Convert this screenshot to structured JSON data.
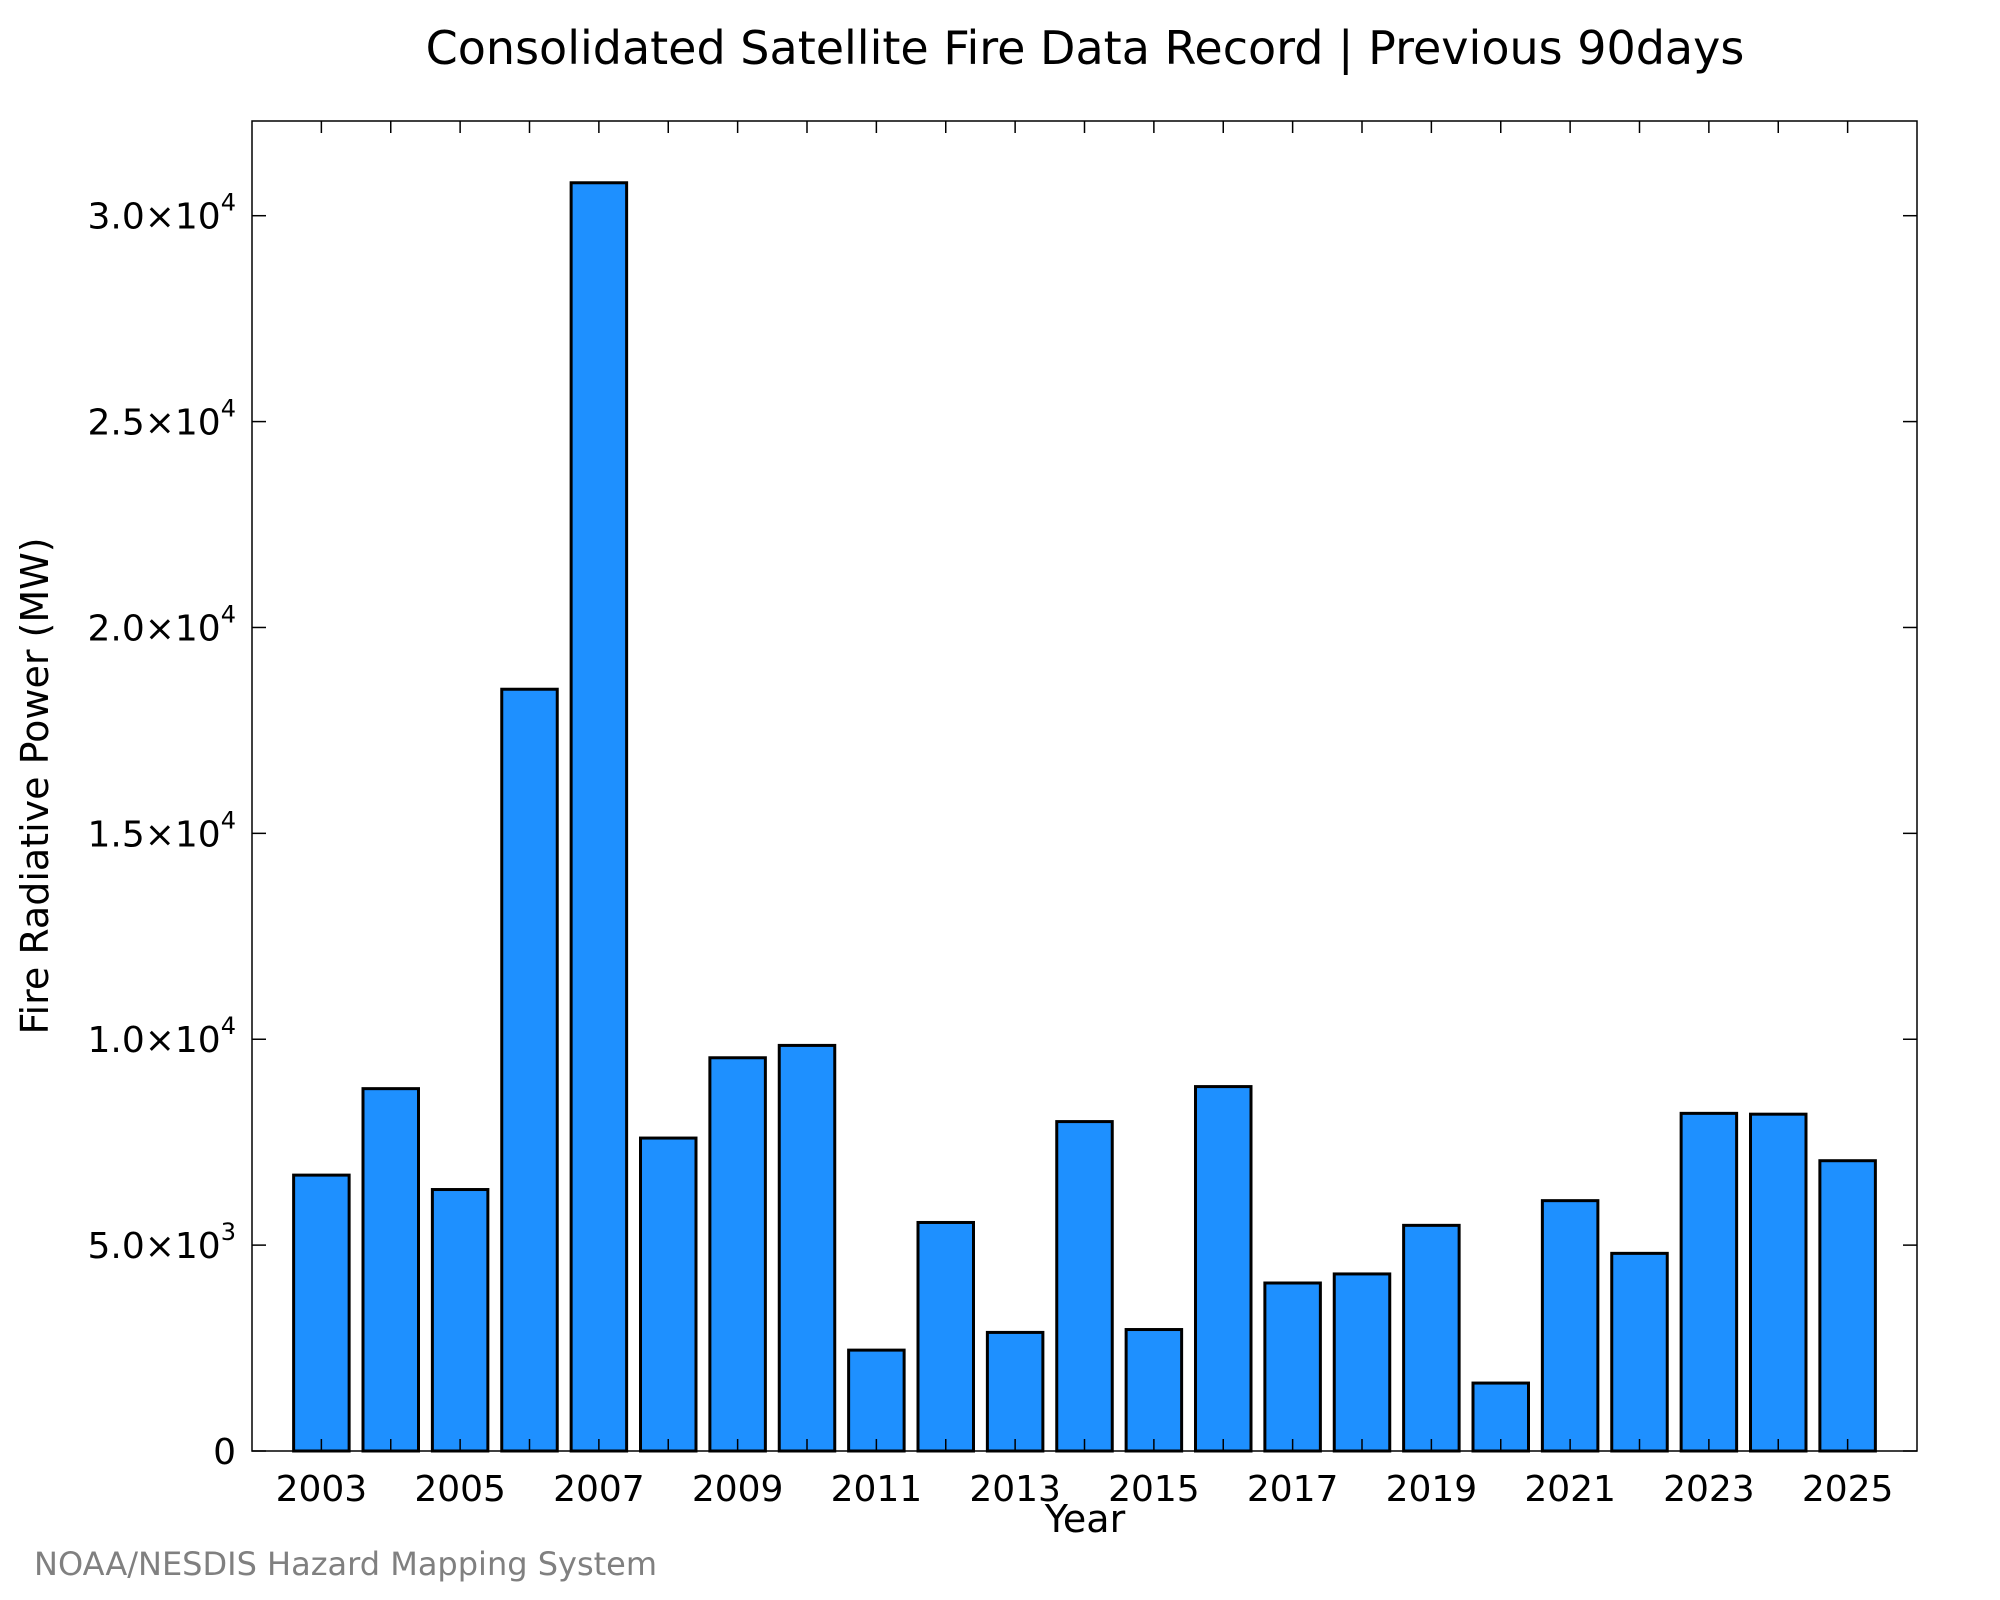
{
  "chart_data": {
    "type": "bar",
    "title": "Consolidated Satellite Fire Data Record | Previous 90days",
    "xlabel": "Year",
    "ylabel": "Fire Radiative Power (MW)",
    "categories": [
      2003,
      2004,
      2005,
      2006,
      2007,
      2008,
      2009,
      2010,
      2011,
      2012,
      2013,
      2014,
      2015,
      2016,
      2017,
      2018,
      2019,
      2020,
      2021,
      2022,
      2023,
      2024,
      2025
    ],
    "values": [
      6700,
      8800,
      6350,
      18500,
      30800,
      7600,
      9550,
      9850,
      2450,
      5550,
      2880,
      8000,
      2950,
      8850,
      4080,
      4300,
      5480,
      1650,
      6080,
      4800,
      8200,
      8180,
      7050
    ],
    "xlim": [
      2002,
      2026
    ],
    "ylim": [
      0,
      32300
    ],
    "x_tick_labels": [
      "2003",
      "2005",
      "2007",
      "2009",
      "2011",
      "2013",
      "2015",
      "2017",
      "2019",
      "2021",
      "2023",
      "2025"
    ],
    "y_ticks": [
      {
        "value": 0,
        "mantissa": "0",
        "exponent": ""
      },
      {
        "value": 5000,
        "mantissa": "5.0×10",
        "exponent": "3"
      },
      {
        "value": 10000,
        "mantissa": "1.0×10",
        "exponent": "4"
      },
      {
        "value": 15000,
        "mantissa": "1.5×10",
        "exponent": "4"
      },
      {
        "value": 20000,
        "mantissa": "2.0×10",
        "exponent": "4"
      },
      {
        "value": 25000,
        "mantissa": "2.5×10",
        "exponent": "4"
      },
      {
        "value": 30000,
        "mantissa": "3.0×10",
        "exponent": "4"
      }
    ],
    "bar_color": "#1E90FF",
    "grid": false
  },
  "footer": {
    "credit": "NOAA/NESDIS Hazard Mapping System"
  }
}
